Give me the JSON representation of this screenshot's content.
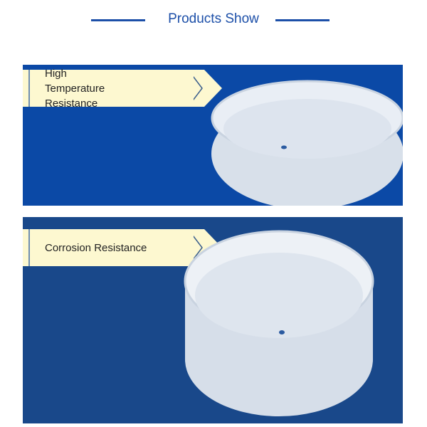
{
  "header": {
    "title": "Products Show",
    "accent": "#1c4fa8"
  },
  "panels": [
    {
      "label": "High Temperature Resistance",
      "background": "#0b49a6"
    },
    {
      "label": "Corrosion Resistance",
      "background": "#19488a"
    }
  ]
}
